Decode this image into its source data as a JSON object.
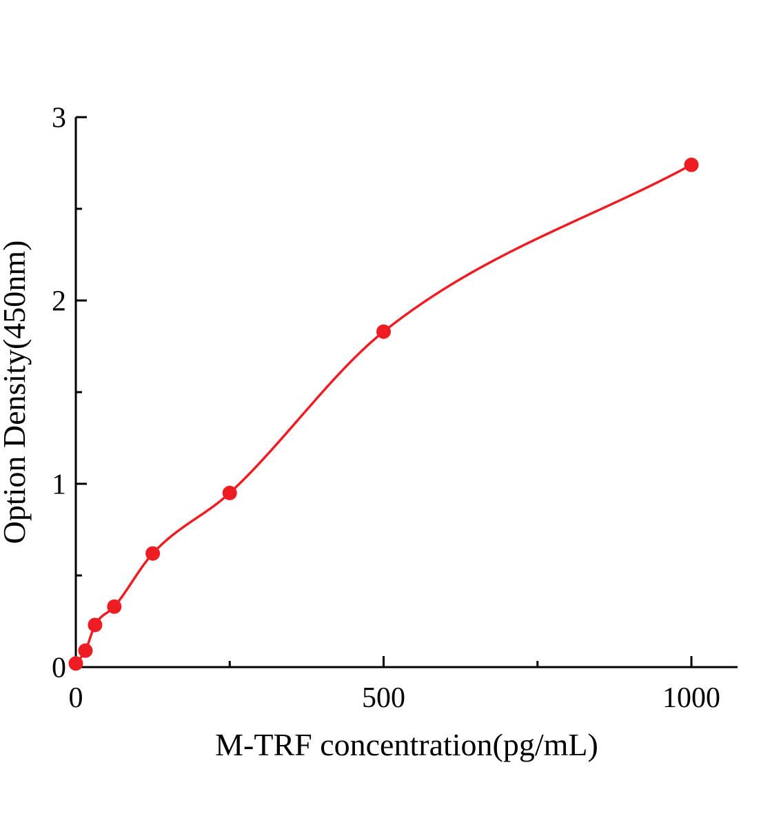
{
  "chart_data": {
    "type": "scatter",
    "title": "",
    "xlabel": "M-TRF concentration(pg/mL)",
    "ylabel": "Option Density(450nm)",
    "x": [
      0,
      15.6,
      31.25,
      62.5,
      125,
      250,
      500,
      1000
    ],
    "y": [
      0.02,
      0.09,
      0.23,
      0.33,
      0.62,
      0.95,
      1.83,
      2.74
    ],
    "fit_curve": true,
    "xlim": [
      0,
      1075
    ],
    "ylim": [
      0,
      3
    ],
    "x_major_ticks": [
      0,
      500,
      1000
    ],
    "x_minor_ticks": [
      250,
      750
    ],
    "y_major_ticks": [
      0,
      1,
      2,
      3
    ],
    "y_minor_ticks": [
      0.5,
      1.5,
      2.5
    ],
    "x_tick_labels": [
      "0",
      "500",
      "1000"
    ],
    "y_tick_labels": [
      "0",
      "1",
      "2",
      "3"
    ],
    "grid": false,
    "legend": "none",
    "point_color": "#ee1c23",
    "line_color": "#ee1c23",
    "axis_color": "#000000"
  }
}
